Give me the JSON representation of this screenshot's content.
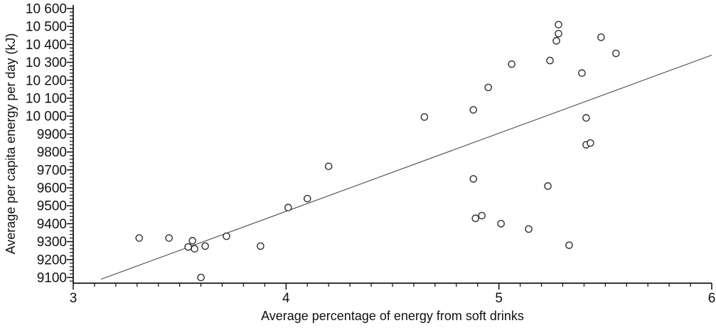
{
  "chart_data": {
    "type": "scatter",
    "title": "",
    "xlabel": "Average percentage of energy from soft drinks",
    "ylabel": "Average per capita energy per day (kJ)",
    "xlim": [
      3,
      6
    ],
    "ylim": [
      9060,
      10620
    ],
    "x_ticks": [
      3,
      4,
      5,
      6
    ],
    "x_tick_labels": [
      "3",
      "4",
      "5",
      "6"
    ],
    "x_minor_tick_step": 0.1,
    "y_ticks": [
      9100,
      9200,
      9300,
      9400,
      9500,
      9600,
      9700,
      9800,
      9900,
      10000,
      10100,
      10200,
      10300,
      10400,
      10500,
      10600
    ],
    "y_tick_labels": [
      "9100",
      "9200",
      "9300",
      "9400",
      "9500",
      "9600",
      "9700",
      "9800",
      "9900",
      "10 000",
      "10 100",
      "10 200",
      "10 300",
      "10 400",
      "10 500",
      "10 600"
    ],
    "y_minor_tick_step": 20,
    "grid": false,
    "legend": null,
    "marker": {
      "shape": "open-circle",
      "color": "#2f2f2f"
    },
    "axis_color": "#1a1a1a",
    "points": [
      [
        3.31,
        9320
      ],
      [
        3.45,
        9320
      ],
      [
        3.54,
        9270
      ],
      [
        3.56,
        9305
      ],
      [
        3.57,
        9260
      ],
      [
        3.6,
        9100
      ],
      [
        3.62,
        9275
      ],
      [
        3.72,
        9330
      ],
      [
        3.88,
        9275
      ],
      [
        4.01,
        9490
      ],
      [
        4.1,
        9540
      ],
      [
        4.2,
        9720
      ],
      [
        4.65,
        9995
      ],
      [
        4.88,
        10035
      ],
      [
        4.88,
        9650
      ],
      [
        4.89,
        9430
      ],
      [
        4.92,
        9445
      ],
      [
        4.95,
        10160
      ],
      [
        5.01,
        9400
      ],
      [
        5.06,
        10290
      ],
      [
        5.14,
        9370
      ],
      [
        5.23,
        9610
      ],
      [
        5.24,
        10310
      ],
      [
        5.27,
        10420
      ],
      [
        5.28,
        10510
      ],
      [
        5.28,
        10460
      ],
      [
        5.33,
        9280
      ],
      [
        5.39,
        10240
      ],
      [
        5.41,
        9990
      ],
      [
        5.41,
        9840
      ],
      [
        5.43,
        9850
      ],
      [
        5.48,
        10440
      ],
      [
        5.55,
        10350
      ]
    ],
    "trendline": {
      "x1": 3.13,
      "y1": 9090,
      "x2": 6.0,
      "y2": 10340,
      "color": "#4a4a4a"
    }
  }
}
